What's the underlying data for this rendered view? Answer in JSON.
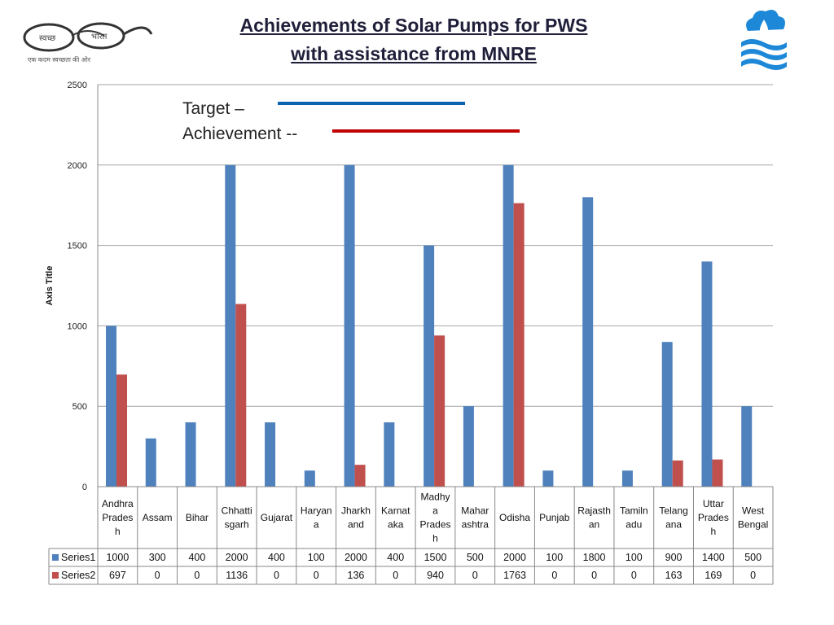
{
  "header": {
    "title_line1": "Achievements of Solar Pumps for PWS",
    "title_line2": "with assistance from MNRE",
    "logo_left_word1": "स्वच्छ",
    "logo_left_word2": "भारत",
    "logo_left_tagline": "एक कदम स्वच्छता की ओर"
  },
  "legend_note": {
    "target_label": "Target –",
    "achievement_label": "Achievement --"
  },
  "colors": {
    "series1": "#4f81bd",
    "series2": "#c0504d",
    "target_line": "#0a62b0",
    "achievement_line": "#c00000",
    "grid": "#a6a6a6",
    "logo_blue": "#1e88d8"
  },
  "chart_data": {
    "type": "bar",
    "title": "",
    "xlabel": "",
    "ylabel": "Axis Title",
    "ylim": [
      0,
      2500
    ],
    "yticks": [
      0,
      500,
      1000,
      1500,
      2000,
      2500
    ],
    "categories": [
      [
        "Andhra",
        "Prades",
        "h"
      ],
      [
        "Assam"
      ],
      [
        "Bihar"
      ],
      [
        "Chhatti",
        "sgarh"
      ],
      [
        "Gujarat"
      ],
      [
        "Haryan",
        "a"
      ],
      [
        "Jharkh",
        "and"
      ],
      [
        "Karnat",
        "aka"
      ],
      [
        "Madhy",
        "a",
        "Prades",
        "h"
      ],
      [
        "Mahar",
        "ashtra"
      ],
      [
        "Odisha"
      ],
      [
        "Punjab"
      ],
      [
        "Rajasth",
        "an"
      ],
      [
        "Tamiln",
        "adu"
      ],
      [
        "Telang",
        "ana"
      ],
      [
        "Uttar",
        "Prades",
        "h"
      ],
      [
        "West",
        "Bengal"
      ]
    ],
    "series": [
      {
        "name": "Series1",
        "values": [
          1000,
          300,
          400,
          2000,
          400,
          100,
          2000,
          400,
          1500,
          500,
          2000,
          100,
          1800,
          100,
          900,
          1400,
          500
        ]
      },
      {
        "name": "Series2",
        "values": [
          697,
          0,
          0,
          1136,
          0,
          0,
          136,
          0,
          940,
          0,
          1763,
          0,
          0,
          0,
          163,
          169,
          0
        ]
      }
    ],
    "data_table": true,
    "grid": true
  }
}
